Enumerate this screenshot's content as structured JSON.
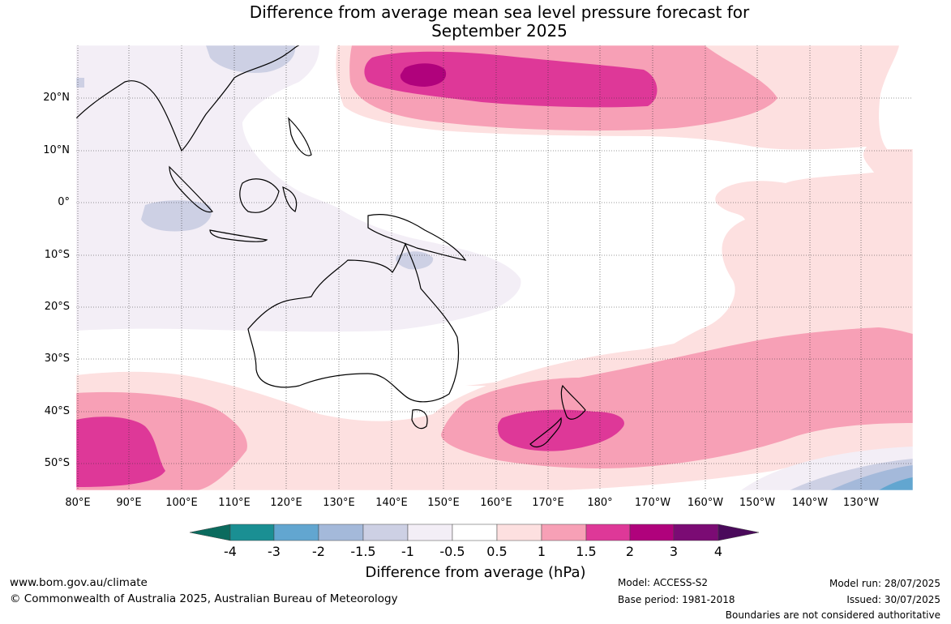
{
  "title_line1": "Difference from average mean sea level pressure forecast for",
  "title_line2": "September 2025",
  "lat_labels": [
    "20°N",
    "10°N",
    "0°",
    "10°S",
    "20°S",
    "30°S",
    "40°S",
    "50°S"
  ],
  "lon_labels": [
    "80°E",
    "90°E",
    "100°E",
    "110°E",
    "120°E",
    "130°E",
    "140°E",
    "150°E",
    "160°E",
    "170°E",
    "180°",
    "170°W",
    "160°W",
    "150°W",
    "140°W",
    "130°W"
  ],
  "colorbar": {
    "ticks": [
      "-4",
      "-3",
      "-2",
      "-1.5",
      "-1",
      "-0.5",
      "0.5",
      "1",
      "1.5",
      "2",
      "3",
      "4"
    ],
    "colors": [
      "#0b6b5e",
      "#1a8f93",
      "#62a6d0",
      "#a4b9da",
      "#cdd0e4",
      "#f3eef6",
      "#ffffff",
      "#fde0e0",
      "#f7a0b6",
      "#de3898",
      "#b0027c",
      "#7b0b74",
      "#4a0a5b"
    ],
    "title": "Difference from average (hPa)"
  },
  "footer": {
    "website": "www.bom.gov.au/climate",
    "copyright": "© Commonwealth of Australia 2025, Australian Bureau of Meteorology",
    "model": "Model: ACCESS-S2",
    "base_period": "Base period: 1981-2018",
    "model_run": "Model run: 28/07/2025",
    "issued": "Issued: 30/07/2025",
    "disclaimer": "Boundaries are not considered authoritative"
  }
}
